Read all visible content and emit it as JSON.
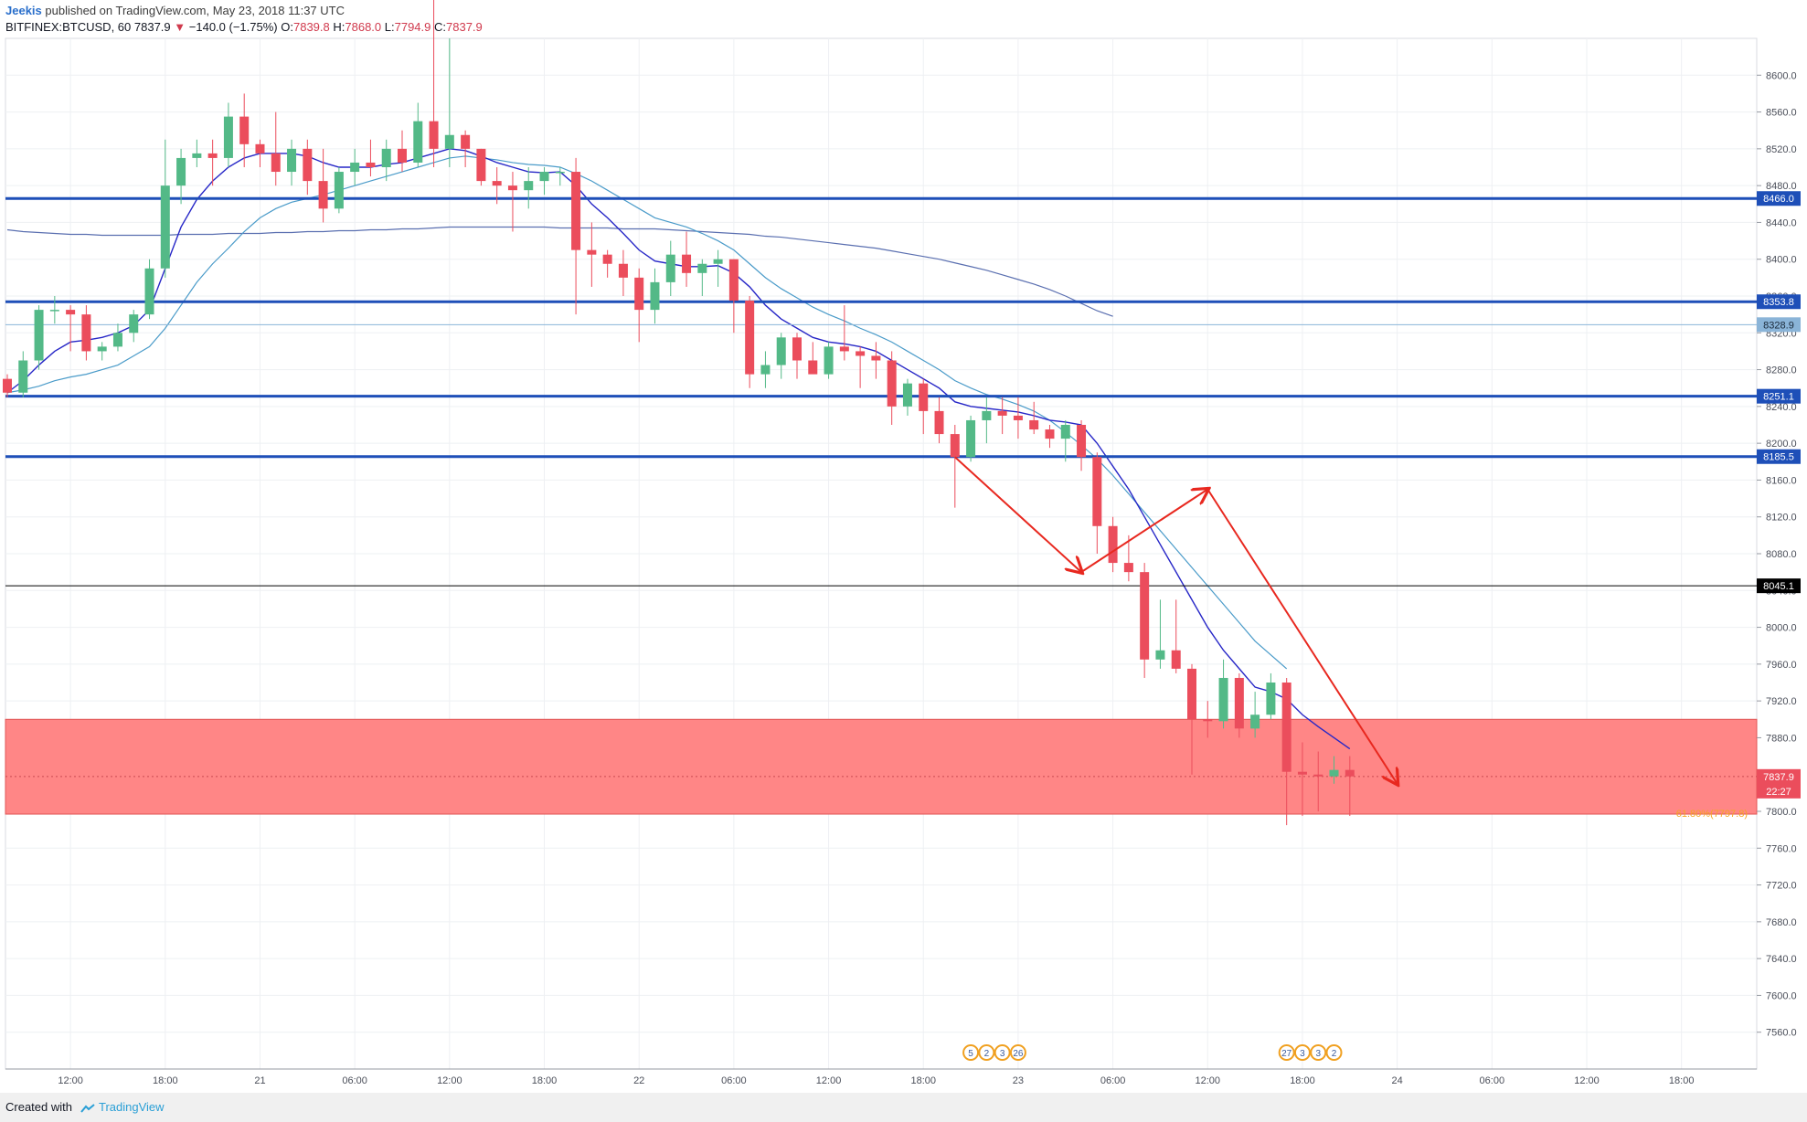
{
  "header": {
    "author": "Jeekis",
    "published_text": "published on TradingView.com, May 23, 2018 11:37 UTC",
    "symbol": "BITFINEX:BTCUSD, 60",
    "last": "7837.9",
    "change": "−140.0 (−1.75%)",
    "o_label": "O:",
    "o_value": "7839.8",
    "h_label": "H:",
    "h_value": "7868.0",
    "l_label": "L:",
    "l_value": "7794.9",
    "c_label": "C:",
    "c_value": "7837.9"
  },
  "footer": {
    "created_with": "Created with",
    "brand": "TradingView"
  },
  "colors": {
    "up": "#53b987",
    "down": "#eb4d5c",
    "level": "#1e4fb8",
    "ma_fast": "#2727c7",
    "ma_mid": "#4a9bc9",
    "ma_slow": "#5a6fb0",
    "zone": "#ff8080",
    "arrow": "#e8281f",
    "fib": "#f5a623"
  },
  "chart_data": {
    "type": "candlestick",
    "y_ticks": [
      7560,
      7600,
      7640,
      7680,
      7720,
      7760,
      7800,
      7840,
      7880,
      7920,
      7960,
      8000,
      8040,
      8080,
      8120,
      8160,
      8200,
      8240,
      8280,
      8320,
      8360,
      8400,
      8440,
      8480,
      8520,
      8560,
      8600
    ],
    "y_tick_labels": [
      "7560.0",
      "7600.0",
      "7640.0",
      "7680.0",
      "7720.0",
      "7760.0",
      "7800.0",
      "7840.0",
      "7880.0",
      "7920.0",
      "7960.0",
      "8000.0",
      "8040.0",
      "8080.0",
      "8120.0",
      "8160.0",
      "8200.0",
      "8240.0",
      "8280.0",
      "8320.0",
      "8360.0",
      "8400.0",
      "8440.0",
      "8480.0",
      "8520.0",
      "8560.0",
      "8600.0"
    ],
    "ylim": [
      7520,
      8640
    ],
    "x_tick_labels": [
      "12:00",
      "18:00",
      "21",
      "06:00",
      "12:00",
      "18:00",
      "22",
      "06:00",
      "12:00",
      "18:00",
      "23",
      "06:00",
      "12:00",
      "18:00",
      "24",
      "06:00",
      "12:00",
      "18:00"
    ],
    "x_tick_index": [
      4,
      10,
      16,
      22,
      28,
      34,
      40,
      46,
      52,
      58,
      64,
      70,
      76,
      82,
      88,
      94,
      100,
      106
    ],
    "candles": [
      [
        8270,
        8275,
        8250,
        8255
      ],
      [
        8255,
        8300,
        8250,
        8290
      ],
      [
        8290,
        8350,
        8280,
        8345
      ],
      [
        8345,
        8360,
        8330,
        8345
      ],
      [
        8345,
        8350,
        8300,
        8340
      ],
      [
        8340,
        8350,
        8290,
        8300
      ],
      [
        8300,
        8310,
        8290,
        8305
      ],
      [
        8305,
        8330,
        8300,
        8320
      ],
      [
        8320,
        8345,
        8310,
        8340
      ],
      [
        8340,
        8400,
        8335,
        8390
      ],
      [
        8390,
        8530,
        8380,
        8480
      ],
      [
        8480,
        8520,
        8460,
        8510
      ],
      [
        8510,
        8530,
        8500,
        8515
      ],
      [
        8515,
        8530,
        8480,
        8510
      ],
      [
        8510,
        8570,
        8500,
        8555
      ],
      [
        8555,
        8580,
        8500,
        8525
      ],
      [
        8525,
        8530,
        8500,
        8515
      ],
      [
        8515,
        8560,
        8480,
        8495
      ],
      [
        8495,
        8530,
        8480,
        8520
      ],
      [
        8520,
        8530,
        8470,
        8485
      ],
      [
        8485,
        8520,
        8440,
        8455
      ],
      [
        8455,
        8500,
        8450,
        8495
      ],
      [
        8495,
        8520,
        8480,
        8505
      ],
      [
        8505,
        8530,
        8490,
        8500
      ],
      [
        8500,
        8530,
        8485,
        8520
      ],
      [
        8520,
        8540,
        8495,
        8505
      ],
      [
        8505,
        8570,
        8500,
        8550
      ],
      [
        8550,
        8690,
        8500,
        8520
      ],
      [
        8520,
        8640,
        8500,
        8535
      ],
      [
        8535,
        8540,
        8500,
        8520
      ],
      [
        8520,
        8520,
        8480,
        8485
      ],
      [
        8485,
        8500,
        8460,
        8480
      ],
      [
        8480,
        8495,
        8430,
        8475
      ],
      [
        8475,
        8500,
        8455,
        8485
      ],
      [
        8485,
        8500,
        8470,
        8495
      ],
      [
        8495,
        8500,
        8480,
        8495
      ],
      [
        8495,
        8510,
        8340,
        8410
      ],
      [
        8410,
        8440,
        8370,
        8405
      ],
      [
        8405,
        8410,
        8380,
        8395
      ],
      [
        8395,
        8410,
        8360,
        8380
      ],
      [
        8380,
        8390,
        8310,
        8345
      ],
      [
        8345,
        8390,
        8330,
        8375
      ],
      [
        8375,
        8420,
        8360,
        8405
      ],
      [
        8405,
        8430,
        8370,
        8385
      ],
      [
        8385,
        8400,
        8360,
        8395
      ],
      [
        8395,
        8410,
        8370,
        8400
      ],
      [
        8400,
        8400,
        8320,
        8355
      ],
      [
        8355,
        8360,
        8260,
        8275
      ],
      [
        8275,
        8300,
        8260,
        8285
      ],
      [
        8285,
        8320,
        8270,
        8315
      ],
      [
        8315,
        8320,
        8270,
        8290
      ],
      [
        8290,
        8310,
        8280,
        8275
      ],
      [
        8275,
        8310,
        8270,
        8305
      ],
      [
        8305,
        8350,
        8290,
        8300
      ],
      [
        8300,
        8305,
        8260,
        8295
      ],
      [
        8295,
        8310,
        8270,
        8290
      ],
      [
        8290,
        8300,
        8220,
        8240
      ],
      [
        8240,
        8270,
        8230,
        8265
      ],
      [
        8265,
        8270,
        8210,
        8235
      ],
      [
        8235,
        8250,
        8200,
        8210
      ],
      [
        8210,
        8220,
        8130,
        8185
      ],
      [
        8185,
        8230,
        8180,
        8225
      ],
      [
        8225,
        8250,
        8200,
        8235
      ],
      [
        8235,
        8250,
        8210,
        8230
      ],
      [
        8230,
        8250,
        8205,
        8225
      ],
      [
        8225,
        8245,
        8210,
        8215
      ],
      [
        8215,
        8220,
        8195,
        8205
      ],
      [
        8205,
        8225,
        8180,
        8220
      ],
      [
        8220,
        8225,
        8170,
        8185
      ],
      [
        8185,
        8190,
        8080,
        8110
      ],
      [
        8110,
        8120,
        8060,
        8070
      ],
      [
        8070,
        8100,
        8050,
        8060
      ],
      [
        8060,
        8070,
        7945,
        7965
      ],
      [
        7965,
        8030,
        7955,
        7975
      ],
      [
        7975,
        8030,
        7950,
        7955
      ],
      [
        7955,
        7960,
        7840,
        7900
      ],
      [
        7900,
        7920,
        7880,
        7898
      ],
      [
        7898,
        7965,
        7890,
        7945
      ],
      [
        7945,
        7950,
        7880,
        7890
      ],
      [
        7890,
        7930,
        7880,
        7905
      ],
      [
        7905,
        7950,
        7900,
        7940
      ],
      [
        7940,
        7945,
        7785,
        7843
      ],
      [
        7843,
        7875,
        7795,
        7840
      ],
      [
        7840,
        7865,
        7800,
        7838
      ],
      [
        7838,
        7860,
        7830,
        7845
      ],
      [
        7845,
        7860,
        7795,
        7838
      ]
    ],
    "ema_fast": [
      8255,
      8268,
      8285,
      8300,
      8310,
      8312,
      8315,
      8320,
      8328,
      8345,
      8390,
      8435,
      8465,
      8485,
      8500,
      8510,
      8515,
      8515,
      8515,
      8512,
      8505,
      8500,
      8500,
      8500,
      8503,
      8505,
      8510,
      8515,
      8520,
      8518,
      8512,
      8505,
      8500,
      8495,
      8494,
      8495,
      8480,
      8460,
      8445,
      8428,
      8410,
      8398,
      8395,
      8392,
      8392,
      8393,
      8385,
      8370,
      8350,
      8335,
      8325,
      8315,
      8310,
      8308,
      8305,
      8300,
      8290,
      8280,
      8270,
      8260,
      8245,
      8240,
      8238,
      8236,
      8234,
      8230,
      8225,
      8223,
      8220,
      8200,
      8175,
      8150,
      8120,
      8090,
      8060,
      8030,
      8000,
      7975,
      7955,
      7935,
      7930,
      7922,
      7905,
      7892,
      7880,
      7868
    ],
    "ema_mid": [
      8255,
      8258,
      8262,
      8268,
      8272,
      8275,
      8280,
      8285,
      8295,
      8305,
      8325,
      8350,
      8375,
      8395,
      8412,
      8430,
      8445,
      8455,
      8462,
      8466,
      8470,
      8475,
      8480,
      8485,
      8490,
      8495,
      8500,
      8505,
      8510,
      8512,
      8510,
      8508,
      8505,
      8503,
      8502,
      8500,
      8493,
      8485,
      8475,
      8465,
      8455,
      8445,
      8440,
      8435,
      8428,
      8420,
      8410,
      8395,
      8380,
      8368,
      8358,
      8348,
      8340,
      8333,
      8325,
      8318,
      8310,
      8300,
      8290,
      8280,
      8268,
      8260,
      8253,
      8248,
      8242,
      8235,
      8225,
      8212,
      8198,
      8183,
      8165,
      8145,
      8125,
      8105,
      8085,
      8065,
      8045,
      8025,
      8005,
      7985,
      7970,
      7955
    ],
    "ma_slow": [
      8432,
      8430,
      8429,
      8428,
      8427,
      8427,
      8426,
      8426,
      8426,
      8426,
      8426,
      8427,
      8427,
      8427,
      8428,
      8428,
      8428,
      8429,
      8429,
      8430,
      8430,
      8431,
      8431,
      8432,
      8432,
      8433,
      8433,
      8434,
      8435,
      8435,
      8435,
      8435,
      8435,
      8435,
      8435,
      8434,
      8434,
      8434,
      8434,
      8433,
      8433,
      8433,
      8432,
      8431,
      8430,
      8429,
      8428,
      8427,
      8425,
      8424,
      8422,
      8420,
      8418,
      8416,
      8414,
      8412,
      8409,
      8406,
      8403,
      8400,
      8396,
      8392,
      8388,
      8383,
      8378,
      8373,
      8367,
      8360,
      8352,
      8344,
      8338
    ],
    "levels": [
      {
        "value": 8466.0,
        "label": "8466.0"
      },
      {
        "value": 8353.8,
        "label": "8353.8"
      },
      {
        "value": 8251.1,
        "label": "8251.1"
      },
      {
        "value": 8185.5,
        "label": "8185.5"
      }
    ],
    "mark_line": {
      "value": 8045.1,
      "label": "8045.1"
    },
    "light_line": {
      "value": 8328.9,
      "label": "8328.9"
    },
    "current": {
      "value": 7837.9,
      "label": "7837.9",
      "countdown": "22:27"
    },
    "zone": {
      "top": 7900,
      "bottom": 7797
    },
    "fib_label": "61.80%(7797.8)",
    "arrows": [
      {
        "from": [
          60,
          8185
        ],
        "to": [
          68,
          8060
        ]
      },
      {
        "from": [
          68,
          8060
        ],
        "to": [
          76,
          8150
        ]
      },
      {
        "from": [
          76,
          8150
        ],
        "to": [
          88,
          7830
        ]
      }
    ],
    "event_labels": [
      "5",
      "2",
      "3",
      "26",
      "27",
      "3",
      "3",
      "2"
    ]
  }
}
